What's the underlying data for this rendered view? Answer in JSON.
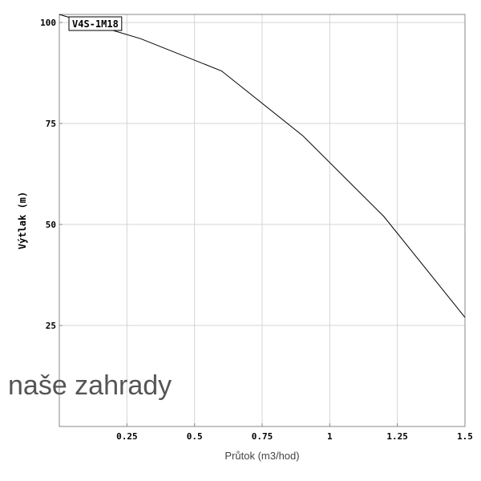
{
  "chart_data": {
    "type": "line",
    "title": "",
    "xlabel": "Průtok (m3/hod)",
    "ylabel": "Výtlak (m)",
    "xlim": [
      0,
      1.5
    ],
    "ylim": [
      0,
      102
    ],
    "x_ticks": [
      {
        "value": 0.25,
        "label": "0.25"
      },
      {
        "value": 0.5,
        "label": "0.5"
      },
      {
        "value": 0.75,
        "label": "0.75"
      },
      {
        "value": 1,
        "label": "1"
      },
      {
        "value": 1.25,
        "label": "1.25"
      },
      {
        "value": 1.5,
        "label": "1.5"
      }
    ],
    "y_ticks": [
      {
        "value": 25,
        "label": "25"
      },
      {
        "value": 50,
        "label": "50"
      },
      {
        "value": 75,
        "label": "75"
      },
      {
        "value": 100,
        "label": "100"
      }
    ],
    "grid": true,
    "legend_position": "top-left",
    "series": [
      {
        "name": "V4S-1M18",
        "color": "#000000",
        "x": [
          0,
          0.15,
          0.3,
          0.6,
          0.9,
          1.2,
          1.5
        ],
        "y": [
          102,
          99,
          96,
          88,
          72,
          52,
          27
        ]
      }
    ]
  },
  "watermark": "naše zahrady"
}
